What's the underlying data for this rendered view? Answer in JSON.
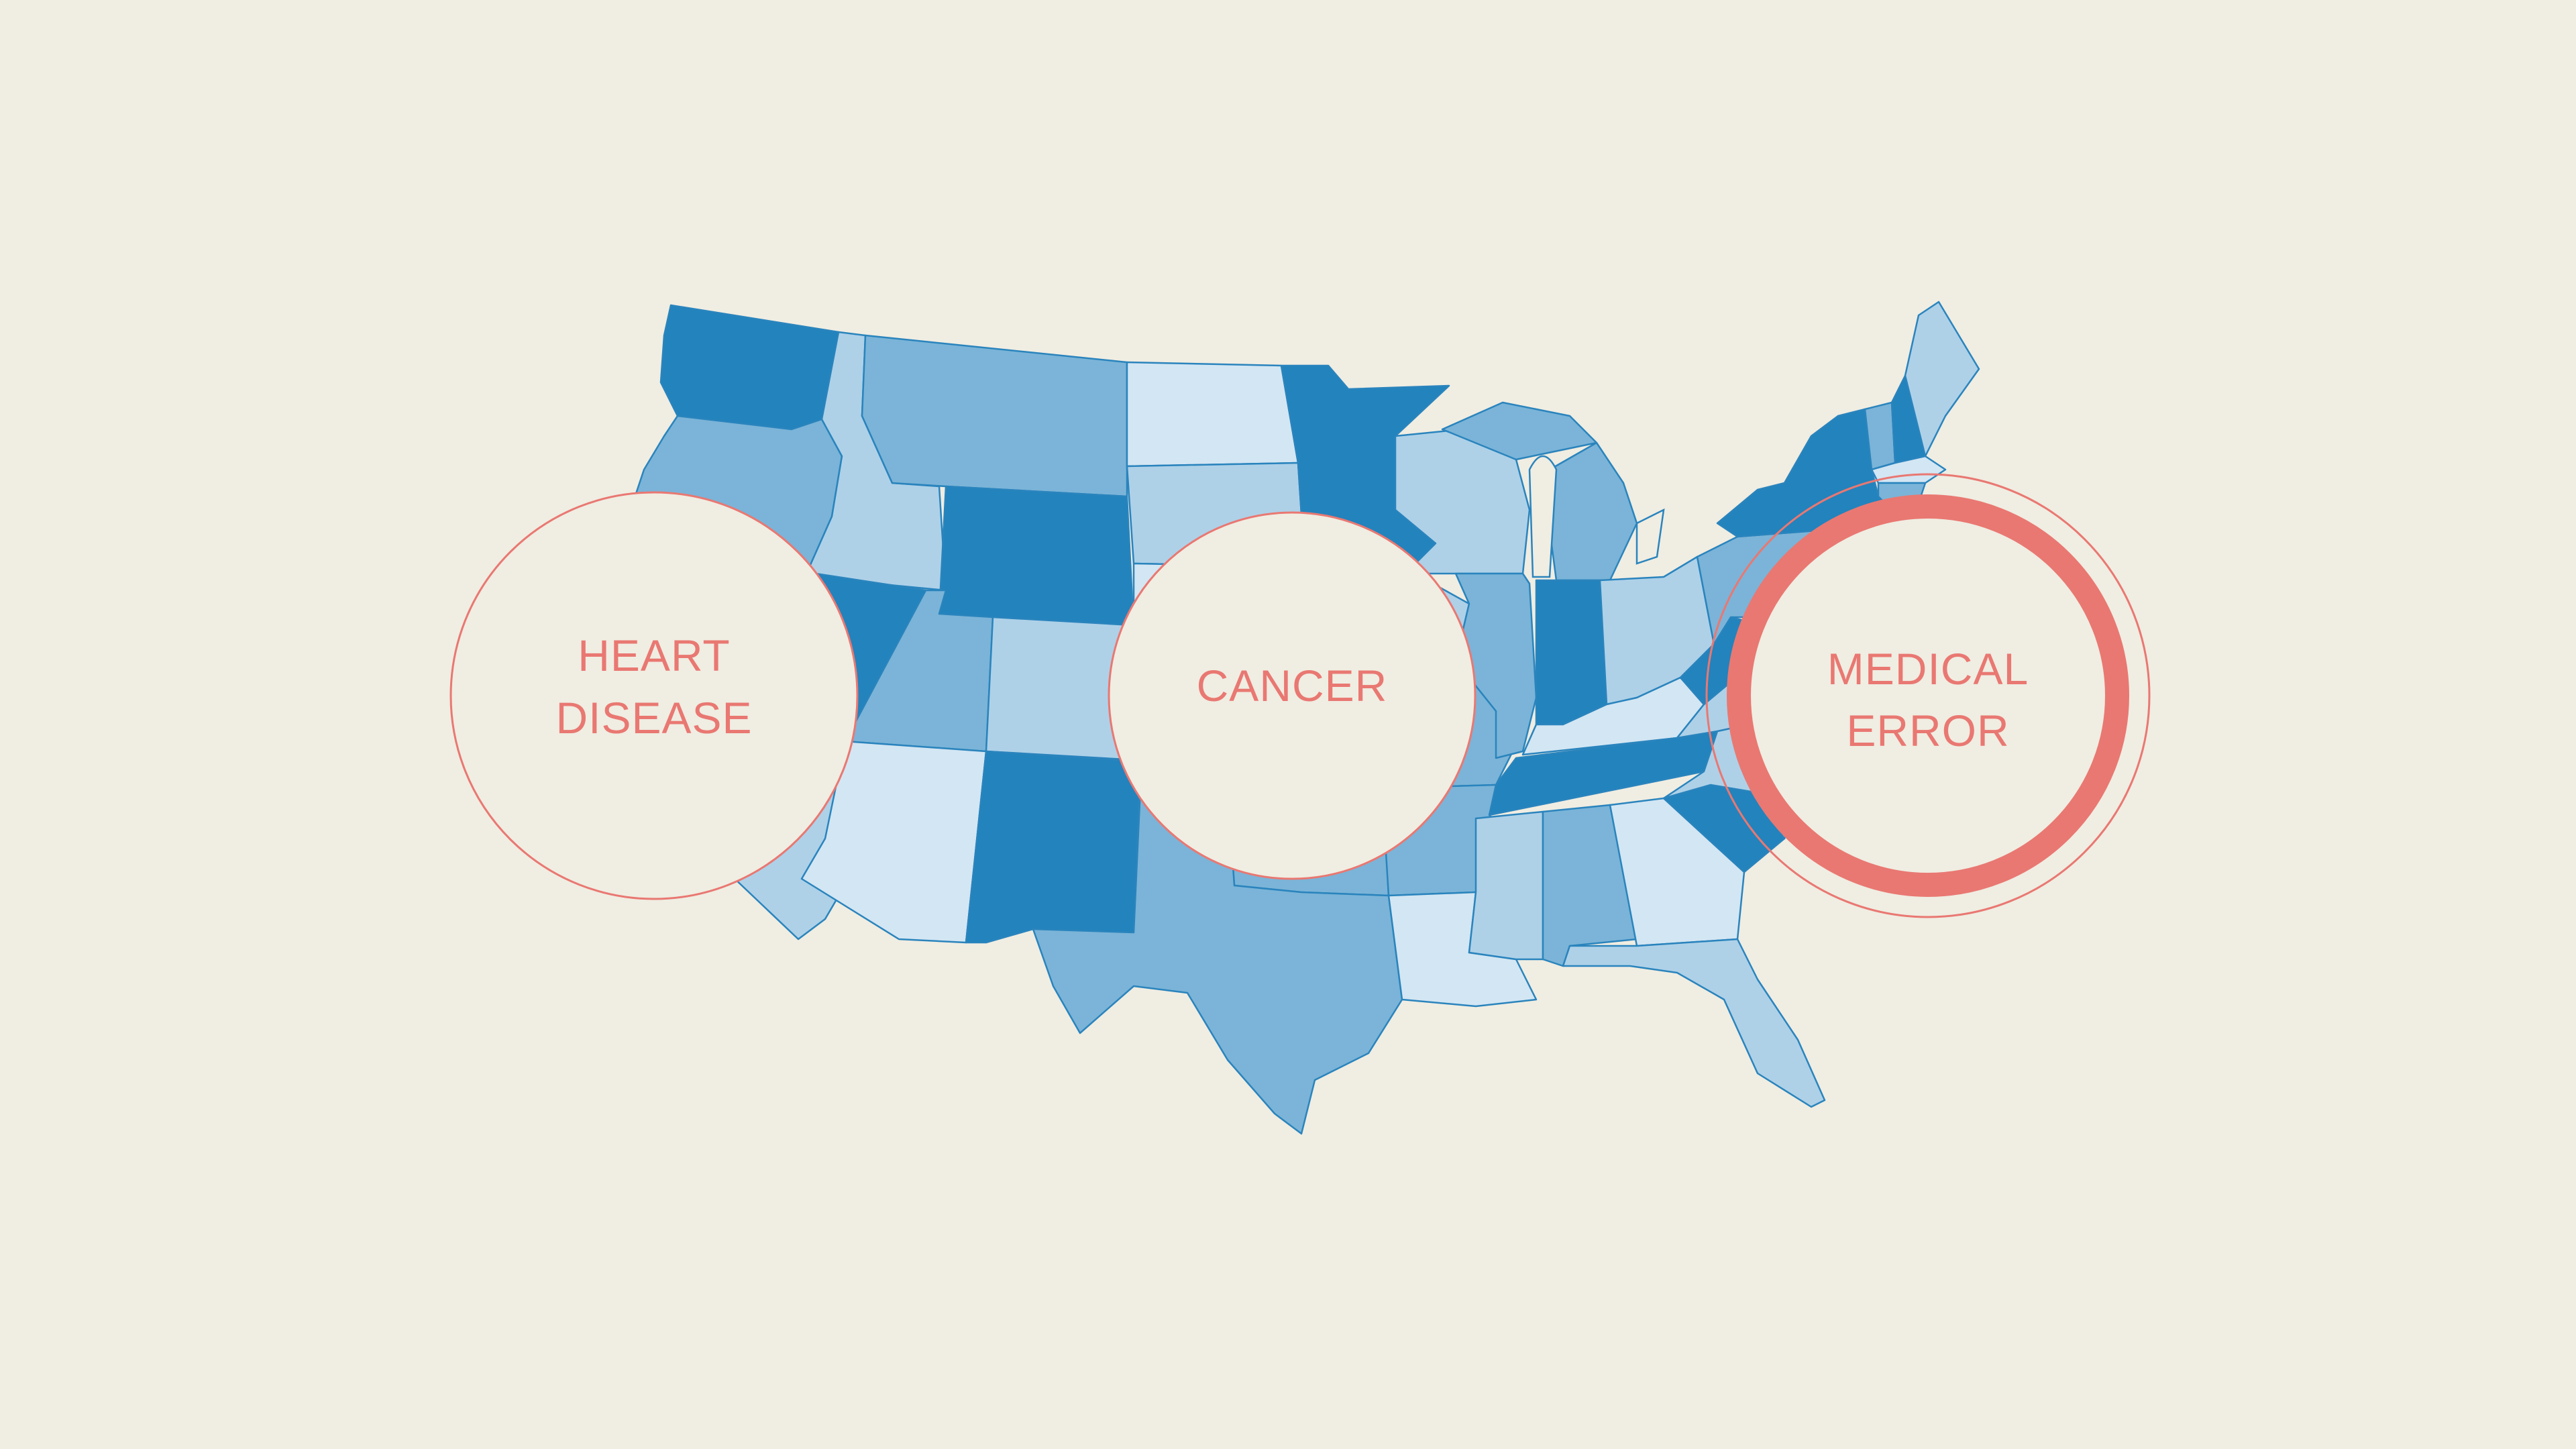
{
  "colors": {
    "background": "#f0ede2",
    "shade_1": "#d3e6f3",
    "shade_2": "#aed1e8",
    "shade_3": "#7bb4d8",
    "shade_4": "#2383bc",
    "border": "#2a84bd",
    "accent": "#e97872"
  },
  "map": {
    "region": "contiguous-united-states",
    "states": [
      {
        "name": "Washington",
        "shade": 4
      },
      {
        "name": "Oregon",
        "shade": 3
      },
      {
        "name": "California",
        "shade": 2
      },
      {
        "name": "Idaho",
        "shade": 2
      },
      {
        "name": "Nevada",
        "shade": 4
      },
      {
        "name": "Montana",
        "shade": 3
      },
      {
        "name": "Wyoming",
        "shade": 4
      },
      {
        "name": "Utah",
        "shade": 3
      },
      {
        "name": "Arizona",
        "shade": 1
      },
      {
        "name": "Colorado",
        "shade": 2
      },
      {
        "name": "New Mexico",
        "shade": 4
      },
      {
        "name": "North Dakota",
        "shade": 1
      },
      {
        "name": "South Dakota",
        "shade": 2
      },
      {
        "name": "Nebraska",
        "shade": 1
      },
      {
        "name": "Kansas",
        "shade": 3
      },
      {
        "name": "Oklahoma",
        "shade": 3
      },
      {
        "name": "Texas",
        "shade": 3
      },
      {
        "name": "Minnesota",
        "shade": 4
      },
      {
        "name": "Iowa",
        "shade": 2
      },
      {
        "name": "Missouri",
        "shade": 3
      },
      {
        "name": "Arkansas",
        "shade": 3
      },
      {
        "name": "Louisiana",
        "shade": 1
      },
      {
        "name": "Wisconsin",
        "shade": 2
      },
      {
        "name": "Illinois",
        "shade": 3
      },
      {
        "name": "Michigan",
        "shade": 3
      },
      {
        "name": "Indiana",
        "shade": 4
      },
      {
        "name": "Ohio",
        "shade": 2
      },
      {
        "name": "Kentucky",
        "shade": 1
      },
      {
        "name": "Tennessee",
        "shade": 4
      },
      {
        "name": "Mississippi",
        "shade": 2
      },
      {
        "name": "Alabama",
        "shade": 3
      },
      {
        "name": "Georgia",
        "shade": 1
      },
      {
        "name": "Florida",
        "shade": 2
      },
      {
        "name": "South Carolina",
        "shade": 4
      },
      {
        "name": "North Carolina",
        "shade": 2
      },
      {
        "name": "Virginia",
        "shade": 2
      },
      {
        "name": "West Virginia",
        "shade": 4
      },
      {
        "name": "Pennsylvania",
        "shade": 3
      },
      {
        "name": "New York",
        "shade": 4
      },
      {
        "name": "Vermont",
        "shade": 3
      },
      {
        "name": "New Hampshire",
        "shade": 4
      },
      {
        "name": "Maine",
        "shade": 2
      },
      {
        "name": "Massachusetts",
        "shade": 1
      },
      {
        "name": "Connecticut",
        "shade": 3
      },
      {
        "name": "New Jersey",
        "shade": 2
      }
    ]
  },
  "causes": [
    {
      "line1": "HEART",
      "line2": "DISEASE",
      "highlighted": false
    },
    {
      "line1": "CANCER",
      "line2": "",
      "highlighted": false
    },
    {
      "line1": "MEDICAL",
      "line2": "ERROR",
      "highlighted": true
    }
  ]
}
